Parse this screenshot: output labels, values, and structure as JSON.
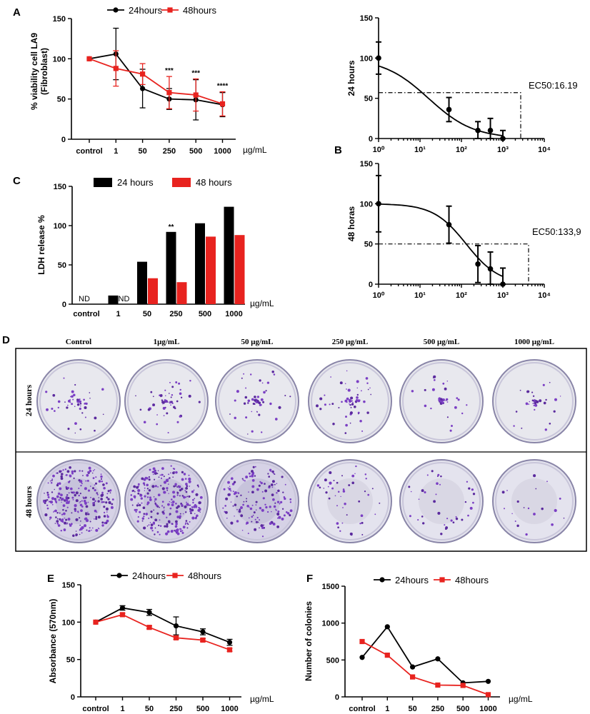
{
  "units": "µg/mL",
  "chart_data": [
    {
      "id": "A",
      "type": "line",
      "panel_letter": "A",
      "ylabel_line1": "% viability cell LA9",
      "ylabel_line2": "(Fibroblast)",
      "ylim": [
        0,
        150
      ],
      "yticks": [
        "0",
        "50",
        "100",
        "150"
      ],
      "categories": [
        "control",
        "1",
        "50",
        "250",
        "500",
        "1000"
      ],
      "series": [
        {
          "name": "24hours",
          "color": "#000000",
          "values": [
            100,
            106,
            63,
            50,
            49,
            43
          ],
          "err": [
            0,
            32,
            24,
            13,
            25,
            15
          ]
        },
        {
          "name": "48hours",
          "color": "#e8231f",
          "values": [
            100,
            88,
            81,
            58,
            55,
            44
          ],
          "err": [
            0,
            22,
            13,
            20,
            20,
            15
          ]
        }
      ],
      "annotations": [
        "",
        "",
        "",
        "***",
        "***",
        "****"
      ]
    },
    {
      "id": "A2",
      "type": "scatter",
      "ylabel": "24 hours",
      "ylim": [
        0,
        150
      ],
      "yticks": [
        "0",
        "50",
        "100",
        "150"
      ],
      "xscale": "log",
      "xticks": [
        "10⁰",
        "10¹",
        "10²",
        "10³",
        "10⁴"
      ],
      "points": [
        {
          "x": 1,
          "y": 100,
          "err": 20
        },
        {
          "x": 50,
          "y": 36,
          "err": 15
        },
        {
          "x": 250,
          "y": 10,
          "err": 11
        },
        {
          "x": 500,
          "y": 10,
          "err": 15
        },
        {
          "x": 1000,
          "y": 0,
          "err": 10
        }
      ],
      "ec50_label": "EC50:16.19",
      "ec50_level": 57
    },
    {
      "id": "B",
      "type": "scatter",
      "panel_letter": "B",
      "ylabel": "48 horas",
      "ylim": [
        0,
        150
      ],
      "yticks": [
        "0",
        "50",
        "100",
        "150"
      ],
      "xscale": "log",
      "xticks": [
        "10⁰",
        "10¹",
        "10²",
        "10³",
        "10⁴"
      ],
      "points": [
        {
          "x": 1,
          "y": 100,
          "err": 35
        },
        {
          "x": 50,
          "y": 74,
          "err": 23
        },
        {
          "x": 250,
          "y": 25,
          "err": 23
        },
        {
          "x": 500,
          "y": 19,
          "err": 21
        },
        {
          "x": 1000,
          "y": 0,
          "err": 20
        }
      ],
      "ec50_label": "EC50:133,9",
      "ec50_level": 50
    },
    {
      "id": "C",
      "type": "bar",
      "panel_letter": "C",
      "ylabel": "LDH release %",
      "ylim": [
        0,
        150
      ],
      "yticks": [
        "0",
        "50",
        "100",
        "150"
      ],
      "categories": [
        "control",
        "1",
        "50",
        "250",
        "500",
        "1000"
      ],
      "series": [
        {
          "name": "24 hours",
          "color": "#000000",
          "values": [
            0,
            11,
            54,
            92,
            103,
            124
          ]
        },
        {
          "name": "48 hours",
          "color": "#e8231f",
          "values": [
            0,
            0,
            33,
            28,
            86,
            88
          ]
        }
      ],
      "nd_labels": [
        [
          "ND",
          ""
        ],
        [
          "",
          "ND"
        ]
      ],
      "annotations": [
        "",
        "",
        "",
        "**",
        "",
        ""
      ]
    },
    {
      "id": "E",
      "type": "line",
      "panel_letter": "E",
      "ylabel": "Absorbance (570nm)",
      "ylim": [
        0,
        150
      ],
      "yticks": [
        "0",
        "50",
        "100",
        "150"
      ],
      "categories": [
        "control",
        "1",
        "50",
        "250",
        "500",
        "1000"
      ],
      "series": [
        {
          "name": "24hours",
          "color": "#000000",
          "values": [
            100,
            119,
            113,
            95,
            87,
            73
          ],
          "err": [
            0,
            3,
            4,
            12,
            4,
            4
          ]
        },
        {
          "name": "48hours",
          "color": "#e8231f",
          "values": [
            100,
            110,
            93,
            79,
            76,
            63
          ],
          "err": [
            0,
            2,
            2,
            2,
            2,
            2
          ]
        }
      ]
    },
    {
      "id": "F",
      "type": "line",
      "panel_letter": "F",
      "ylabel": "Number of colonies",
      "ylim": [
        0,
        1500
      ],
      "yticks": [
        "0",
        "500",
        "1000",
        "1500"
      ],
      "categories": [
        "control",
        "1",
        "50",
        "250",
        "500",
        "1000"
      ],
      "series": [
        {
          "name": "24hours",
          "color": "#000000",
          "values": [
            535,
            950,
            405,
            515,
            190,
            210
          ]
        },
        {
          "name": "48hours",
          "color": "#e8231f",
          "values": [
            750,
            565,
            270,
            160,
            155,
            30
          ]
        }
      ]
    }
  ],
  "plates": {
    "panel_letter": "D",
    "columns": [
      "Control",
      "1μg/mL",
      "50 μg/mL",
      "250 μg/mL",
      "500 μg/mL",
      "1000 μg/mL"
    ],
    "rows": [
      "24 hours",
      "48 hours"
    ],
    "row24_density": [
      0.55,
      0.6,
      0.55,
      0.65,
      0.35,
      0.35
    ],
    "row48_density": [
      1.0,
      1.0,
      0.55,
      0.15,
      0.12,
      0.05
    ]
  }
}
